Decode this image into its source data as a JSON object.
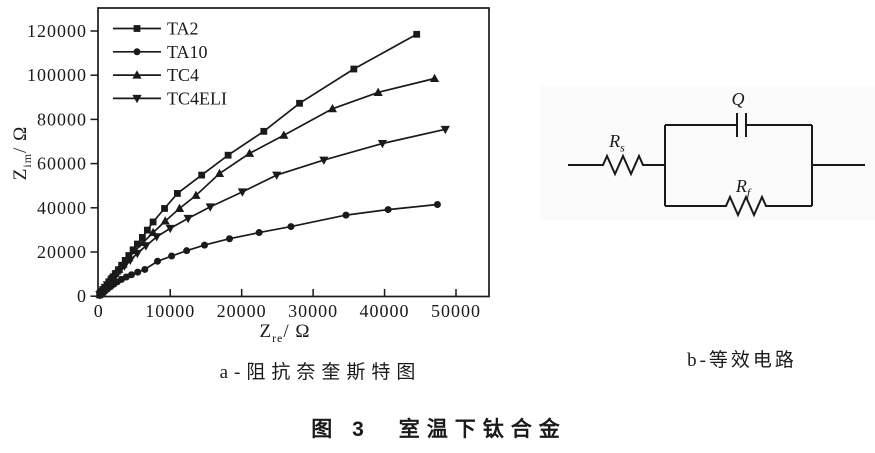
{
  "figure": {
    "caption_a": "a-阻抗奈奎斯特图",
    "caption_b": "b-等效电路",
    "caption_main": "图 3　室温下钛合金"
  },
  "circuit": {
    "rs_main": "R",
    "rs_sub": "s",
    "q_label": "Q",
    "rf_main": "R",
    "rf_sub": "f"
  },
  "chart_data": {
    "type": "line",
    "subtype": "nyquist-impedance-scatter",
    "title": "",
    "xlabel_main": "Z",
    "xlabel_sub": "re",
    "xlabel_unit": "/ Ω",
    "ylabel_main": "Z",
    "ylabel_sub": "im",
    "ylabel_unit": "/ Ω",
    "xlim": [
      0,
      54600
    ],
    "ylim": [
      0,
      130400
    ],
    "x_ticks": [
      0,
      10000,
      20000,
      30000,
      40000,
      50000
    ],
    "y_ticks": [
      0,
      20000,
      40000,
      60000,
      80000,
      100000,
      120000
    ],
    "grid": false,
    "legend_position": "top-left-inside",
    "ink_color": "#1a1a1a",
    "series": [
      {
        "name": "TA2",
        "marker": "square",
        "color": "#1a1a1a",
        "points": [
          [
            120,
            550
          ],
          [
            220,
            1000
          ],
          [
            360,
            1600
          ],
          [
            520,
            2300
          ],
          [
            700,
            3100
          ],
          [
            900,
            4000
          ],
          [
            1150,
            5100
          ],
          [
            1400,
            6200
          ],
          [
            1700,
            7500
          ],
          [
            2000,
            8800
          ],
          [
            2350,
            10300
          ],
          [
            2750,
            12000
          ],
          [
            3200,
            14000
          ],
          [
            3700,
            16200
          ],
          [
            4200,
            18400
          ],
          [
            4800,
            21000
          ],
          [
            5400,
            23600
          ],
          [
            6100,
            26600
          ],
          [
            6800,
            29900
          ],
          [
            7600,
            33600
          ],
          [
            9200,
            39700
          ],
          [
            11000,
            46500
          ],
          [
            14400,
            54800
          ],
          [
            18100,
            63800
          ],
          [
            23100,
            74600
          ],
          [
            28100,
            87300
          ],
          [
            35700,
            102800
          ],
          [
            44500,
            118500
          ]
        ]
      },
      {
        "name": "TA10",
        "marker": "circle",
        "color": "#1a1a1a",
        "points": [
          [
            150,
            400
          ],
          [
            350,
            900
          ],
          [
            600,
            1600
          ],
          [
            900,
            2400
          ],
          [
            1250,
            3300
          ],
          [
            1650,
            4300
          ],
          [
            2100,
            5400
          ],
          [
            2600,
            6500
          ],
          [
            3180,
            7600
          ],
          [
            3850,
            8700
          ],
          [
            4580,
            9700
          ],
          [
            5450,
            10900
          ],
          [
            6440,
            12100
          ],
          [
            8220,
            15800
          ],
          [
            10200,
            18200
          ],
          [
            12300,
            20600
          ],
          [
            14800,
            23100
          ],
          [
            18300,
            26000
          ],
          [
            22440,
            28800
          ],
          [
            26900,
            31500
          ],
          [
            34600,
            36700
          ],
          [
            40500,
            39200
          ],
          [
            47400,
            41500
          ]
        ]
      },
      {
        "name": "TC4",
        "marker": "triangle-up",
        "color": "#1a1a1a",
        "points": [
          [
            200,
            1000
          ],
          [
            350,
            1700
          ],
          [
            500,
            2400
          ],
          [
            650,
            3100
          ],
          [
            800,
            3800
          ],
          [
            1000,
            4700
          ],
          [
            1250,
            5800
          ],
          [
            1550,
            7100
          ],
          [
            1900,
            8600
          ],
          [
            2300,
            10200
          ],
          [
            2800,
            12200
          ],
          [
            3400,
            14500
          ],
          [
            4200,
            17400
          ],
          [
            5100,
            20600
          ],
          [
            6200,
            24300
          ],
          [
            7600,
            28800
          ],
          [
            9300,
            34000
          ],
          [
            11300,
            39700
          ],
          [
            13600,
            45600
          ],
          [
            16900,
            55500
          ],
          [
            21100,
            64600
          ],
          [
            25900,
            72800
          ],
          [
            32700,
            84800
          ],
          [
            39100,
            92200
          ],
          [
            47000,
            98500
          ]
        ]
      },
      {
        "name": "TC4ELI",
        "marker": "triangle-down",
        "color": "#1a1a1a",
        "points": [
          [
            150,
            700
          ],
          [
            280,
            1300
          ],
          [
            450,
            2000
          ],
          [
            650,
            2900
          ],
          [
            900,
            4000
          ],
          [
            1200,
            5200
          ],
          [
            1550,
            6500
          ],
          [
            1950,
            8000
          ],
          [
            2400,
            9600
          ],
          [
            2950,
            11500
          ],
          [
            3600,
            13700
          ],
          [
            4400,
            16300
          ],
          [
            5400,
            19400
          ],
          [
            6600,
            22800
          ],
          [
            8100,
            26900
          ],
          [
            10000,
            30700
          ],
          [
            12500,
            35200
          ],
          [
            15600,
            40400
          ],
          [
            20100,
            47200
          ],
          [
            24900,
            54800
          ],
          [
            31500,
            61600
          ],
          [
            39700,
            69100
          ],
          [
            48500,
            75500
          ]
        ]
      }
    ]
  }
}
